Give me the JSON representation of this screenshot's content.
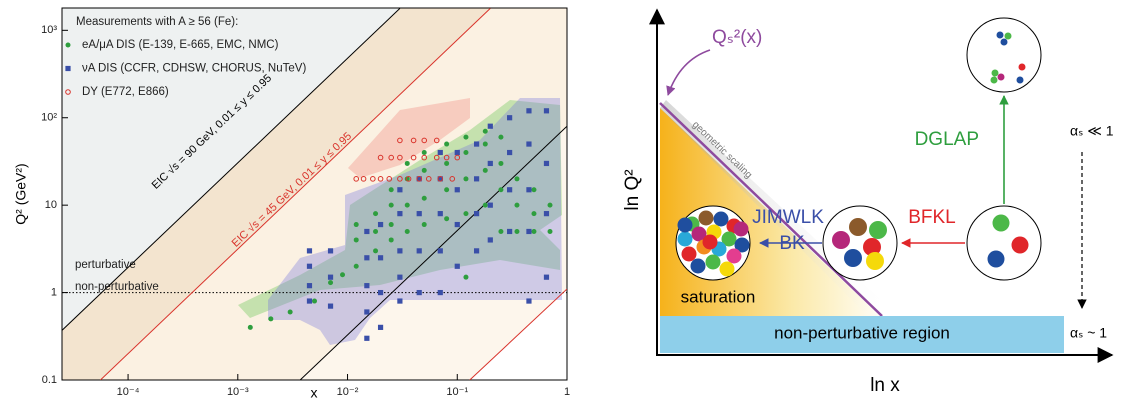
{
  "chart_data": {
    "type": "scatter",
    "xlabel": "x",
    "ylabel": "Q² (GeV²)",
    "xlog": true,
    "ylog": true,
    "xlim": [
      2.5e-05,
      1
    ],
    "ylim": [
      0.1,
      1800
    ],
    "xticks": [
      {
        "value": 0.0001,
        "label": "10⁻⁴"
      },
      {
        "value": 0.001,
        "label": "10⁻³"
      },
      {
        "value": 0.01,
        "label": "10⁻²"
      },
      {
        "value": 0.1,
        "label": "10⁻¹"
      },
      1
    ],
    "yticks": [
      0.1,
      1,
      10,
      {
        "value": 100,
        "label": "10²"
      },
      {
        "value": 1000,
        "label": "10³"
      }
    ],
    "legend": "upper left",
    "legend_title": "Measurements with A ≥ 56 (Fe):",
    "series": [
      {
        "name": "eA/μA DIS (E-139, E-665, EMC, NMC)",
        "color": "#2e9e3e",
        "marker": "circle",
        "x": [
          0.0013,
          0.002,
          0.003,
          0.005,
          0.007,
          0.009,
          0.012,
          0.012,
          0.012,
          0.018,
          0.018,
          0.018,
          0.025,
          0.025,
          0.025,
          0.025,
          0.035,
          0.035,
          0.035,
          0.035,
          0.05,
          0.05,
          0.05,
          0.05,
          0.08,
          0.08,
          0.08,
          0.08,
          0.12,
          0.12,
          0.12,
          0.12,
          0.12,
          0.18,
          0.18,
          0.18,
          0.18,
          0.25,
          0.25,
          0.25,
          0.25,
          0.35,
          0.35,
          0.35,
          0.5,
          0.5,
          0.5,
          0.7,
          0.7
        ],
        "values": [
          0.4,
          0.5,
          0.6,
          0.8,
          1.3,
          1.6,
          2,
          4,
          6,
          3,
          5,
          8,
          4,
          6,
          10,
          15,
          5,
          10,
          20,
          30,
          6,
          12,
          25,
          40,
          7,
          15,
          30,
          50,
          1.5,
          8,
          20,
          40,
          60,
          10,
          25,
          50,
          70,
          5,
          15,
          30,
          60,
          5,
          10,
          20,
          5,
          8,
          15,
          5,
          10
        ]
      },
      {
        "name": "νA DIS (CCFR, CDHSW, CHORUS, NuTeV)",
        "color": "#3a4fa8",
        "marker": "square",
        "x": [
          0.0045,
          0.0045,
          0.0045,
          0.0045,
          0.007,
          0.007,
          0.007,
          0.015,
          0.015,
          0.015,
          0.015,
          0.015,
          0.02,
          0.02,
          0.02,
          0.02,
          0.03,
          0.03,
          0.03,
          0.03,
          0.03,
          0.045,
          0.045,
          0.045,
          0.045,
          0.07,
          0.07,
          0.07,
          0.07,
          0.07,
          0.1,
          0.1,
          0.1,
          0.1,
          0.15,
          0.15,
          0.15,
          0.15,
          0.2,
          0.2,
          0.2,
          0.2,
          0.3,
          0.3,
          0.3,
          0.3,
          0.45,
          0.45,
          0.45,
          0.45,
          0.45,
          0.65,
          0.65,
          0.65,
          0.65
        ],
        "values": [
          0.8,
          1.2,
          2,
          3,
          0.7,
          1.5,
          3,
          0.3,
          0.6,
          1.2,
          2.5,
          5,
          0.4,
          1,
          2.5,
          6,
          0.8,
          1.5,
          3,
          8,
          15,
          1,
          3,
          8,
          20,
          1,
          3,
          8,
          20,
          40,
          2,
          6,
          15,
          40,
          3,
          8,
          20,
          50,
          4,
          10,
          30,
          80,
          5,
          15,
          40,
          100,
          0.8,
          5,
          15,
          50,
          120,
          1.5,
          8,
          30,
          120
        ]
      },
      {
        "name": "DY (E772, E866)",
        "color": "#d9332b",
        "marker": "open-circle",
        "x": [
          0.012,
          0.014,
          0.017,
          0.02,
          0.024,
          0.03,
          0.036,
          0.045,
          0.055,
          0.07,
          0.09,
          0.02,
          0.025,
          0.03,
          0.04,
          0.05,
          0.065,
          0.08,
          0.1,
          0.03,
          0.04,
          0.05,
          0.065
        ],
        "values": [
          20,
          20,
          20,
          20,
          20,
          20,
          20,
          20,
          20,
          20,
          20,
          35,
          35,
          35,
          35,
          35,
          35,
          35,
          35,
          55,
          55,
          55,
          55
        ]
      }
    ],
    "lines": [
      {
        "color": "#000000",
        "x": [
          2.5e-05,
          0.03
        ],
        "values": [
          0.37,
          1780
        ]
      },
      {
        "color": "#d9332b",
        "x": [
          5.6e-05,
          0.2
        ],
        "values": [
          0.1,
          1780
        ]
      },
      {
        "color": "#000000",
        "x": [
          0.0037,
          1
        ],
        "values": [
          0.1,
          80
        ]
      },
      {
        "color": "#d9332b",
        "x": [
          0.13,
          1
        ],
        "values": [
          0.1,
          1.1
        ]
      }
    ],
    "annotations": [
      {
        "text": "EIC √s = 90 GeV, 0.01 ≤ y ≤ 0.95",
        "color": "#000000"
      },
      {
        "text": "EIC √s = 45 GeV, 0.01 ≤ y ≤ 0.95",
        "color": "#d9332b"
      }
    ],
    "hline": 1,
    "hline_labels": [
      "perturbative",
      "non-perturbative"
    ]
  },
  "diagram": {
    "y_axis": "ln Q²",
    "x_axis": "ln x",
    "saturation_scale": "Qₛ²(x)",
    "scaling_label": "geometric scaling",
    "jimwlk": "JIMWLK",
    "bk": "BK",
    "bfkl": "BFKL",
    "dglap": "DGLAP",
    "saturation": "saturation",
    "nonperturbative": "non-perturbative region",
    "weak_coupling": "αₛ ≪ 1",
    "strong_coupling": "αₛ ~ 1"
  }
}
